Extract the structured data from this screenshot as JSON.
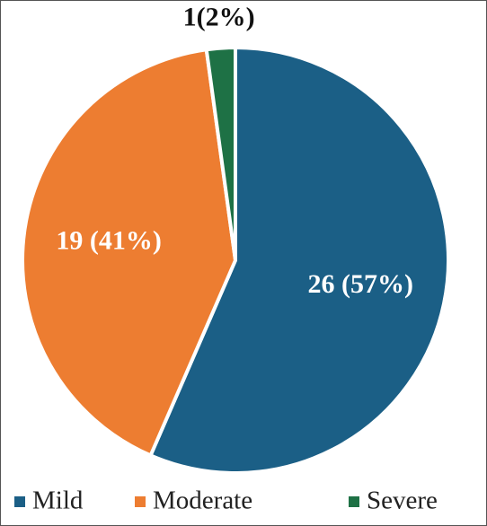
{
  "chart_data": {
    "type": "pie",
    "categories": [
      "Mild",
      "Moderate",
      "Severe"
    ],
    "values": [
      26,
      19,
      1
    ],
    "value_labels": [
      "26 (57%)",
      "19 (41%)",
      "1(2%)"
    ],
    "colors": [
      "#1b5f86",
      "#ed7d31",
      "#1e7145"
    ]
  }
}
